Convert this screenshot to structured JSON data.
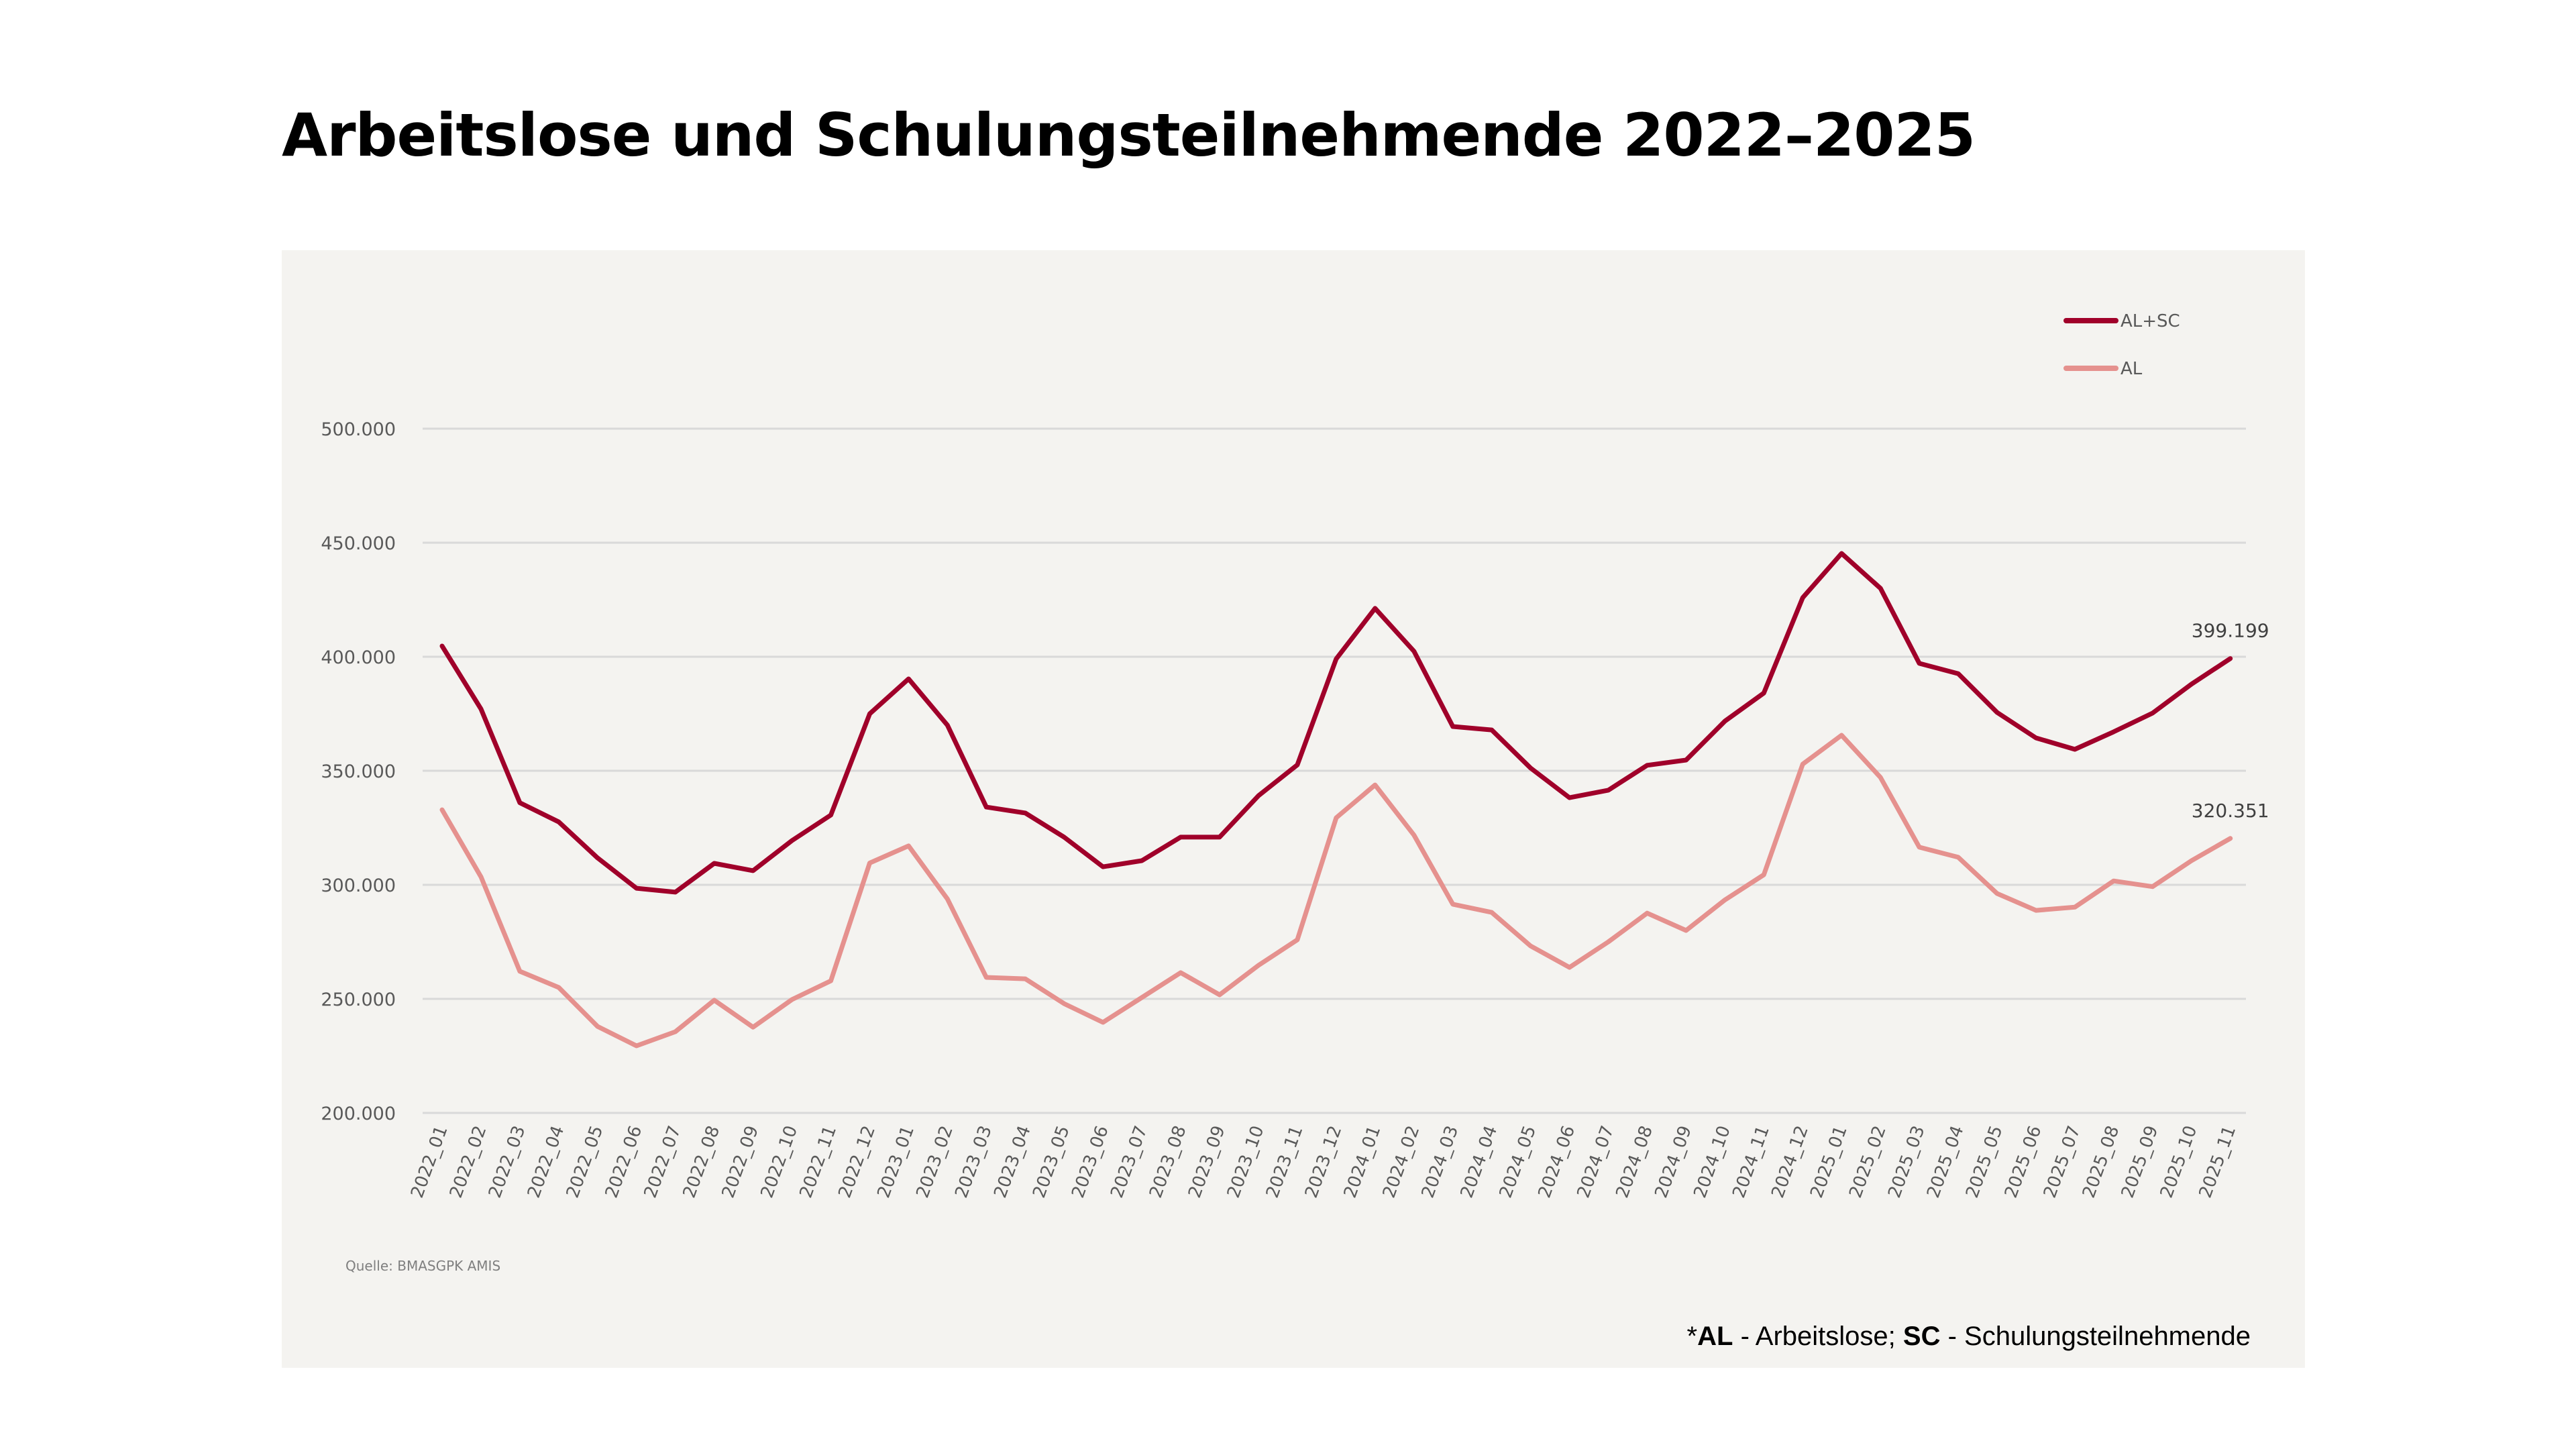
{
  "title": "Arbeitslose und Schulungsteilnehmende 2022–2025",
  "source": "Quelle: BMASGPK AMIS",
  "footnote": {
    "prefix": "*",
    "abbr1": "AL",
    "desc1": " - Arbeitslose; ",
    "abbr2": "SC",
    "desc2": " - Schulungsteilnehmende"
  },
  "colors": {
    "al_sc": "#A0002A",
    "al": "#E5918E",
    "grid": "#D9D9D9",
    "panel_bg": "#F4F3F0"
  },
  "chart_data": {
    "type": "line",
    "title": "Arbeitslose und Schulungsteilnehmende 2022–2025",
    "xlabel": "",
    "ylabel": "",
    "ylim": [
      200000,
      500000
    ],
    "yticks": [
      200000,
      250000,
      300000,
      350000,
      400000,
      450000,
      500000
    ],
    "ytick_labels": [
      "200.000",
      "250.000",
      "300.000",
      "350.000",
      "400.000",
      "450.000",
      "500.000"
    ],
    "grid": true,
    "legend_position": "top-right",
    "categories": [
      "2022_01",
      "2022_02",
      "2022_03",
      "2022_04",
      "2022_05",
      "2022_06",
      "2022_07",
      "2022_08",
      "2022_09",
      "2022_10",
      "2022_11",
      "2022_12",
      "2023_01",
      "2023_02",
      "2023_03",
      "2023_04",
      "2023_05",
      "2023_06",
      "2023_07",
      "2023_08",
      "2023_09",
      "2023_10",
      "2023_11",
      "2023_12",
      "2024_01",
      "2024_02",
      "2024_03",
      "2024_04",
      "2024_05",
      "2024_06",
      "2024_07",
      "2024_08",
      "2024_09",
      "2024_10",
      "2024_11",
      "2024_12",
      "2025_01",
      "2025_02",
      "2025_03",
      "2025_04",
      "2025_05",
      "2025_06",
      "2025_07",
      "2025_08",
      "2025_09",
      "2025_10",
      "2025_11"
    ],
    "series": [
      {
        "name": "AL+SC",
        "color": "#A0002A",
        "values": [
          404700,
          377100,
          336000,
          327600,
          311800,
          298500,
          296800,
          309400,
          306200,
          319400,
          330600,
          375000,
          390300,
          370000,
          334100,
          331500,
          320900,
          307900,
          310600,
          320900,
          320900,
          339100,
          352600,
          399100,
          421200,
          402400,
          369400,
          367900,
          351200,
          338200,
          341500,
          352400,
          354700,
          371800,
          384100,
          425900,
          445300,
          430000,
          397100,
          392600,
          375600,
          364400,
          359400,
          367100,
          375300,
          388000,
          399199
        ],
        "end_label": "399.199"
      },
      {
        "name": "AL",
        "color": "#E5918E",
        "values": [
          332900,
          303500,
          262100,
          255000,
          237900,
          229400,
          235600,
          249400,
          237600,
          249700,
          257900,
          309600,
          317100,
          293800,
          259400,
          258800,
          247900,
          239700,
          250600,
          261500,
          251800,
          264700,
          275900,
          329400,
          343800,
          321800,
          291500,
          287900,
          273200,
          263800,
          275000,
          287600,
          280000,
          293400,
          304400,
          352900,
          365600,
          347100,
          316500,
          312100,
          296200,
          288800,
          290200,
          301700,
          299200,
          310600,
          320351
        ],
        "end_label": "320.351"
      }
    ]
  }
}
